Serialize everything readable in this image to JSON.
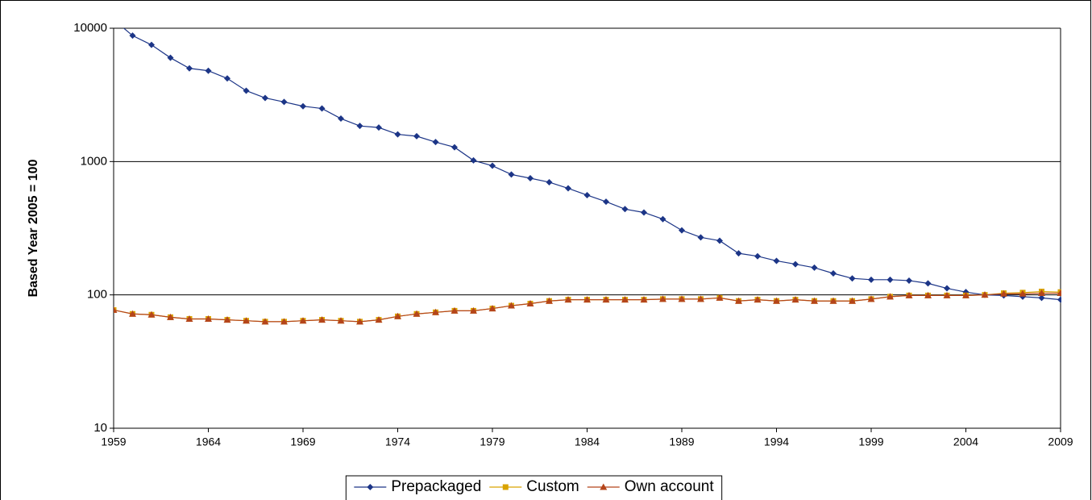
{
  "chart_data": {
    "type": "line",
    "y_label": "Based Year 2005 = 100",
    "log_scale": true,
    "grid": true,
    "legend_position": "bottom",
    "x": [
      1959,
      1960,
      1961,
      1962,
      1963,
      1964,
      1965,
      1966,
      1967,
      1968,
      1969,
      1970,
      1971,
      1972,
      1973,
      1974,
      1975,
      1976,
      1977,
      1978,
      1979,
      1980,
      1981,
      1982,
      1983,
      1984,
      1985,
      1986,
      1987,
      1988,
      1989,
      1990,
      1991,
      1992,
      1993,
      1994,
      1995,
      1996,
      1997,
      1998,
      1999,
      2000,
      2001,
      2002,
      2003,
      2004,
      2005,
      2006,
      2007,
      2008,
      2009
    ],
    "xlim": [
      1959,
      2009
    ],
    "xticks": [
      1959,
      1964,
      1969,
      1974,
      1979,
      1984,
      1989,
      1994,
      1999,
      2004,
      2009
    ],
    "ylim": [
      10,
      10000
    ],
    "yticks": [
      10,
      100,
      1000,
      10000
    ],
    "series": [
      {
        "name": "Prepackaged",
        "color": "#1c3587",
        "marker": "diamond",
        "values": [
          11600,
          8800,
          7500,
          6000,
          5000,
          4800,
          4200,
          3400,
          3000,
          2800,
          2600,
          2500,
          2100,
          1850,
          1800,
          1600,
          1550,
          1400,
          1280,
          1020,
          930,
          800,
          750,
          700,
          630,
          560,
          500,
          440,
          415,
          370,
          305,
          270,
          255,
          205,
          195,
          180,
          170,
          160,
          145,
          133,
          130,
          130,
          128,
          122,
          112,
          105,
          100,
          99,
          97,
          95,
          92
        ]
      },
      {
        "name": "Custom",
        "color": "#d9a300",
        "marker": "square",
        "values": [
          77,
          72,
          71,
          68,
          66,
          66,
          65,
          64,
          63,
          63,
          64,
          65,
          64,
          63,
          65,
          69,
          72,
          74,
          76,
          76,
          79,
          83,
          86,
          90,
          92,
          92,
          92,
          92,
          92,
          93,
          93,
          93,
          95,
          90,
          92,
          90,
          92,
          90,
          90,
          90,
          93,
          97,
          99,
          99,
          99,
          99,
          100,
          103,
          104,
          106,
          105
        ]
      },
      {
        "name": "Own account",
        "color": "#b5451b",
        "marker": "triangle",
        "values": [
          77,
          72,
          71,
          68,
          66,
          66,
          65,
          64,
          63,
          63,
          64,
          65,
          64,
          63,
          65,
          69,
          72,
          74,
          76,
          76,
          79,
          83,
          86,
          90,
          92,
          92,
          92,
          92,
          92,
          93,
          93,
          93,
          95,
          90,
          92,
          90,
          92,
          90,
          90,
          90,
          93,
          97,
          99,
          99,
          99,
          99,
          100,
          102,
          102,
          103,
          103
        ]
      }
    ]
  }
}
